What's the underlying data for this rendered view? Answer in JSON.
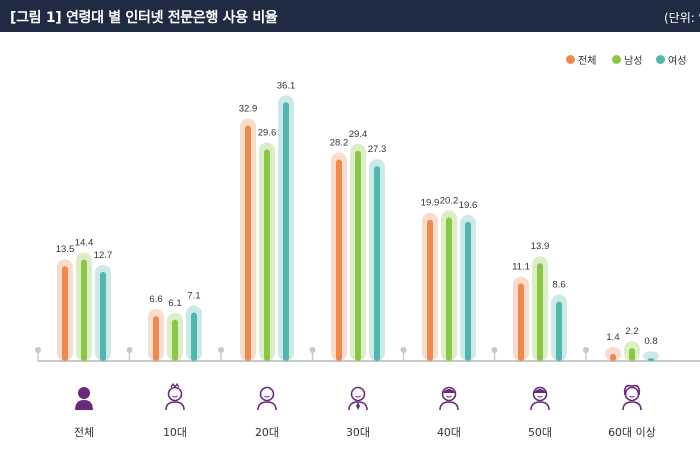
{
  "header": {
    "title": "[그림 1]  연령대 별 인터넷 전문은행 사용 비율",
    "unit": "(단위: %"
  },
  "colors": {
    "all": "#ec8a52",
    "male": "#8cc646",
    "female": "#52b6ae",
    "header_bg": "#1e2b43",
    "axis": "#c8c8c8",
    "icon": "#6a2a7a"
  },
  "chart_data": {
    "type": "bar",
    "title": "연령대 별 인터넷 전문은행 사용 비율",
    "unit": "(단위: %",
    "categories": [
      "전체",
      "10대",
      "20대",
      "30대",
      "40대",
      "50대",
      "60대 이상"
    ],
    "series": [
      {
        "name": "전체",
        "values": [
          13.5,
          6.6,
          32.9,
          28.2,
          19.9,
          11.1,
          1.4
        ]
      },
      {
        "name": "남성",
        "values": [
          14.4,
          6.1,
          29.6,
          29.4,
          20.2,
          13.9,
          2.2
        ]
      },
      {
        "name": "여성",
        "values": [
          12.7,
          7.1,
          36.1,
          27.3,
          19.6,
          8.6,
          0.8
        ]
      }
    ],
    "ylim": [
      0,
      40
    ],
    "legend": "top-right",
    "grid": false
  },
  "icons": [
    "person-filled-icon",
    "child-icon",
    "young-adult-icon",
    "adult-tie-icon",
    "adult-icon",
    "middle-aged-icon",
    "senior-icon"
  ]
}
